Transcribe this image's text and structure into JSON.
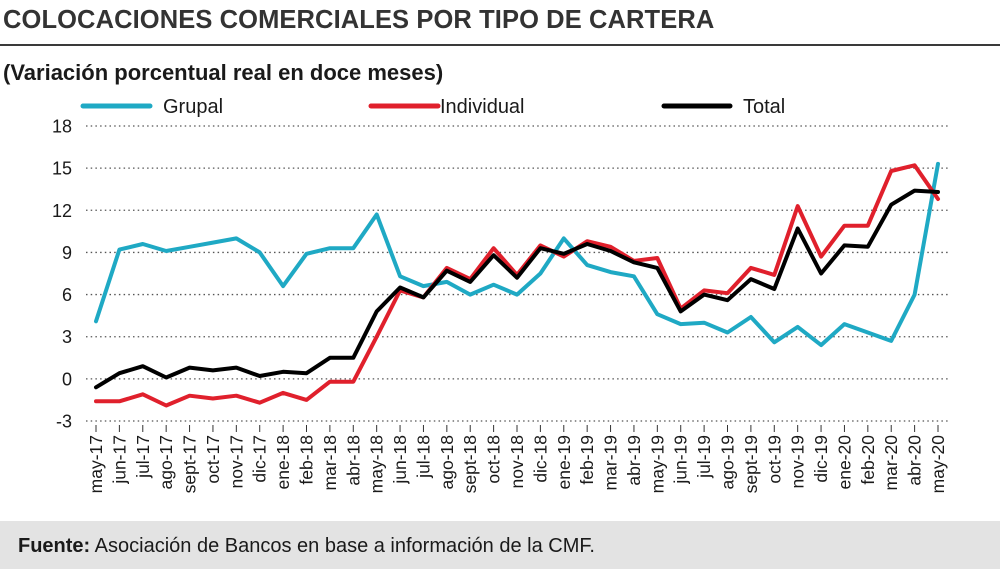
{
  "title": "COLOCACIONES COMERCIALES POR TIPO DE CARTERA",
  "subtitle": "(Variación porcentual real en doce meses)",
  "footer": {
    "label": "Fuente:",
    "text": " Asociación de Bancos en base a información de la CMF."
  },
  "chart_data": {
    "type": "line",
    "x": [
      "may-17",
      "jun-17",
      "jul-17",
      "ago-17",
      "sept-17",
      "oct-17",
      "nov-17",
      "dic-17",
      "ene-18",
      "feb-18",
      "mar-18",
      "abr-18",
      "may-18",
      "jun-18",
      "jul-18",
      "ago-18",
      "sept-18",
      "oct-18",
      "nov-18",
      "dic-18",
      "ene-19",
      "feb-19",
      "mar-19",
      "abr-19",
      "may-19",
      "jun-19",
      "jul-19",
      "ago-19",
      "sept-19",
      "oct-19",
      "nov-19",
      "dic-19",
      "ene-20",
      "feb-20",
      "mar-20",
      "abr-20",
      "may-20"
    ],
    "ylim": [
      -3,
      18
    ],
    "yticks": [
      18,
      15,
      12,
      9,
      6,
      3,
      0,
      -3
    ],
    "grid": true,
    "legend": "top",
    "series": [
      {
        "name": "Grupal",
        "color": "#1fa9c4",
        "values": [
          4.1,
          9.2,
          9.6,
          9.1,
          9.4,
          9.7,
          10.0,
          9.0,
          6.6,
          8.9,
          9.3,
          9.3,
          11.7,
          7.3,
          6.6,
          6.9,
          6.0,
          6.7,
          6.0,
          7.5,
          10.0,
          8.1,
          7.6,
          7.3,
          4.6,
          3.9,
          4.0,
          3.3,
          4.4,
          2.6,
          3.7,
          2.4,
          3.9,
          3.3,
          2.7,
          6.0,
          15.3
        ]
      },
      {
        "name": "Individual",
        "color": "#e0202c",
        "values": [
          -1.6,
          -1.6,
          -1.1,
          -1.9,
          -1.2,
          -1.4,
          -1.2,
          -1.7,
          -1.0,
          -1.5,
          -0.2,
          -0.2,
          3.0,
          6.3,
          5.8,
          7.9,
          7.1,
          9.3,
          7.4,
          9.5,
          8.7,
          9.8,
          9.4,
          8.4,
          8.6,
          5.0,
          6.3,
          6.1,
          7.9,
          7.4,
          12.3,
          8.7,
          10.9,
          10.9,
          14.8,
          15.2,
          12.8
        ]
      },
      {
        "name": "Total",
        "color": "#000000",
        "values": [
          -0.6,
          0.4,
          0.9,
          0.1,
          0.8,
          0.6,
          0.8,
          0.2,
          0.5,
          0.4,
          1.5,
          1.5,
          4.8,
          6.5,
          5.8,
          7.7,
          6.9,
          8.8,
          7.2,
          9.3,
          8.9,
          9.6,
          9.1,
          8.3,
          7.9,
          4.8,
          6.0,
          5.6,
          7.1,
          6.4,
          10.7,
          7.5,
          9.5,
          9.4,
          12.4,
          13.4,
          13.3
        ]
      }
    ]
  }
}
